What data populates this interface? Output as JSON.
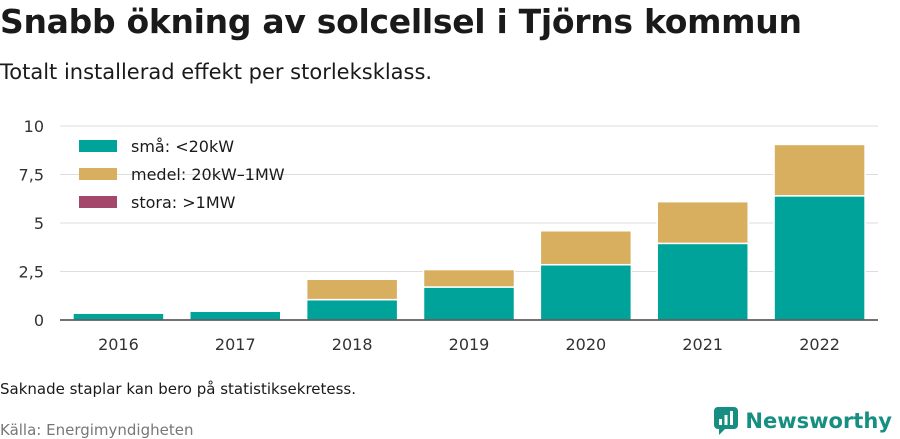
{
  "title": "Snabb ökning av solcellsel i Tjörns kommun",
  "subtitle": "Totalt installerad effekt per storleksklass.",
  "note": "Saknade staplar kan bero på statistiksekretess.",
  "source": "Källa: Energimyndigheten",
  "brand": "Newsworthy",
  "colors": {
    "sma": "#00a39a",
    "medel": "#d8af5e",
    "stora": "#a3486b",
    "grid": "#dddddd",
    "axis": "#444444",
    "brand": "#168f82"
  },
  "chart_data": {
    "type": "bar",
    "stacked": true,
    "categories": [
      "2016",
      "2017",
      "2018",
      "2019",
      "2020",
      "2021",
      "2022"
    ],
    "series": [
      {
        "name": "små: <20kW",
        "color": "#00a39a",
        "values": [
          0.35,
          0.45,
          1.05,
          1.7,
          2.85,
          3.95,
          6.4
        ]
      },
      {
        "name": "medel: 20kW–1MW",
        "color": "#d8af5e",
        "values": [
          0,
          0,
          1.05,
          0.9,
          1.75,
          2.15,
          2.65
        ]
      },
      {
        "name": "stora: >1MW",
        "color": "#a3486b",
        "values": [
          0,
          0,
          0,
          0,
          0,
          0,
          0
        ]
      }
    ],
    "yticks": [
      0,
      2.5,
      5,
      7.5,
      10
    ],
    "ytick_labels": [
      "0",
      "2,5",
      "5",
      "7,5",
      "10"
    ],
    "ylim": [
      0,
      10
    ],
    "grid": true,
    "legend_position": "top-left"
  }
}
